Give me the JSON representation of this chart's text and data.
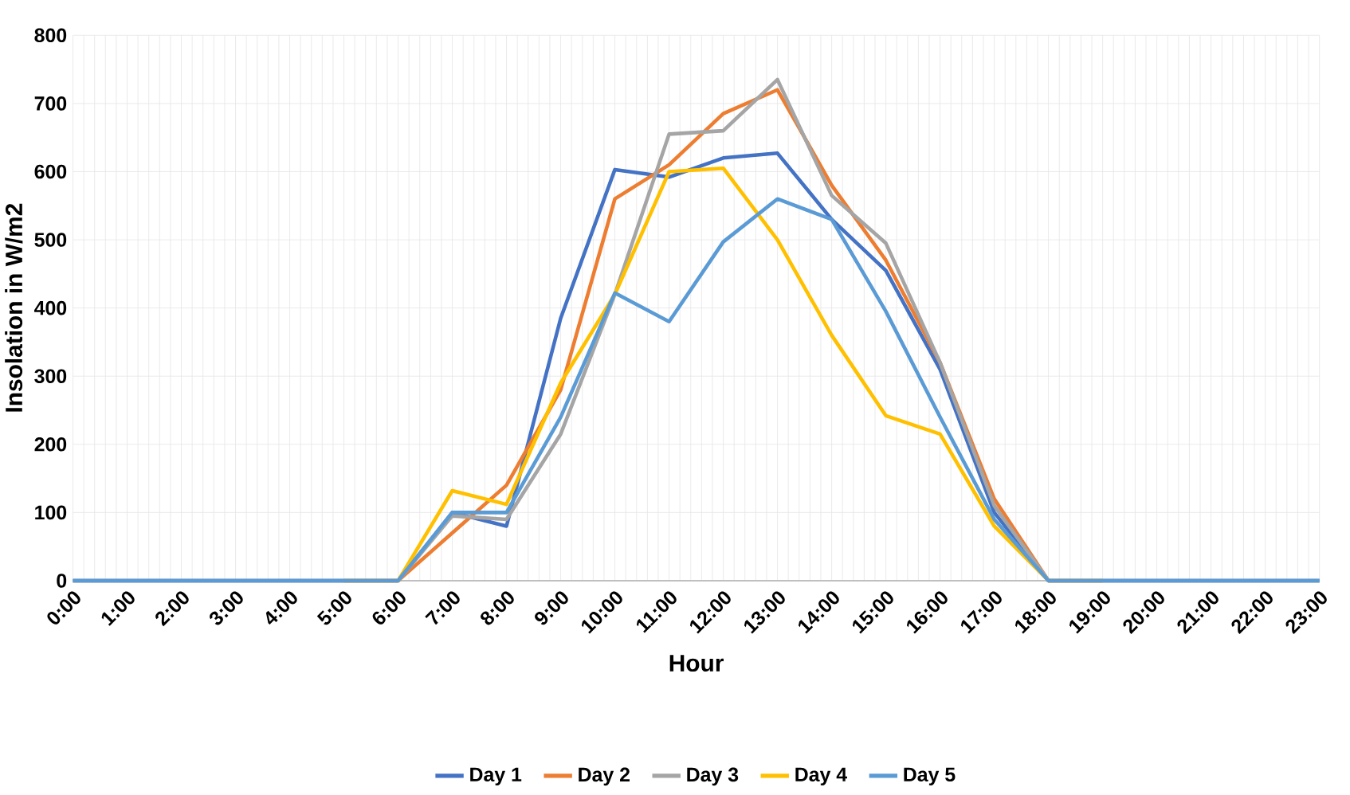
{
  "chart_data": {
    "type": "line",
    "xlabel": "Hour",
    "ylabel": "Insolation in W/m2",
    "categories": [
      "0:00",
      "1:00",
      "2:00",
      "3:00",
      "4:00",
      "5:00",
      "6:00",
      "7:00",
      "8:00",
      "9:00",
      "10:00",
      "11:00",
      "12:00",
      "13:00",
      "14:00",
      "15:00",
      "16:00",
      "17:00",
      "18:00",
      "19:00",
      "20:00",
      "21:00",
      "22:00",
      "23:00"
    ],
    "series": [
      {
        "name": "Day 1",
        "color": "#4472c4",
        "values": [
          0,
          0,
          0,
          0,
          0,
          0,
          0,
          100,
          80,
          385,
          603,
          592,
          620,
          627,
          530,
          455,
          310,
          100,
          0,
          0,
          0,
          0,
          0,
          0
        ]
      },
      {
        "name": "Day 2",
        "color": "#ed7d31",
        "values": [
          null,
          null,
          null,
          null,
          null,
          0,
          0,
          70,
          140,
          280,
          560,
          610,
          685,
          720,
          580,
          470,
          320,
          120,
          0,
          0,
          null,
          null,
          null,
          null
        ]
      },
      {
        "name": "Day 3",
        "color": "#a5a5a5",
        "values": [
          0,
          0,
          0,
          0,
          0,
          0,
          0,
          95,
          90,
          215,
          420,
          655,
          660,
          735,
          565,
          495,
          320,
          110,
          0,
          0,
          0,
          0,
          0,
          0
        ]
      },
      {
        "name": "Day 4",
        "color": "#ffc000",
        "values": [
          null,
          null,
          null,
          null,
          null,
          0,
          0,
          132,
          112,
          290,
          420,
          600,
          605,
          500,
          360,
          242,
          215,
          80,
          0,
          0,
          null,
          null,
          null,
          null
        ]
      },
      {
        "name": "Day 5",
        "color": "#5b9bd5",
        "values": [
          0,
          0,
          0,
          0,
          0,
          0,
          0,
          100,
          100,
          240,
          422,
          380,
          497,
          560,
          530,
          395,
          240,
          90,
          0,
          0,
          0,
          0,
          0,
          0
        ]
      }
    ],
    "ylim": [
      0,
      800
    ],
    "yticks": [
      0,
      100,
      200,
      300,
      400,
      500,
      600,
      700,
      800
    ],
    "grid": true,
    "legend": "bottom",
    "marker": "none",
    "line_style": "solid"
  }
}
